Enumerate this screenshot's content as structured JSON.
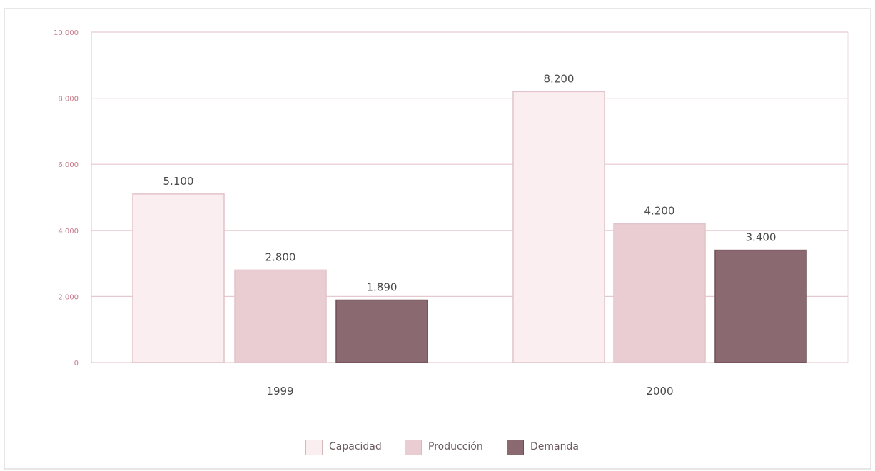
{
  "chart_data": {
    "type": "bar",
    "categories": [
      "1999",
      "2000"
    ],
    "series": [
      {
        "name": "Capacidad",
        "values": [
          5100,
          8200
        ],
        "labels": [
          "5.100",
          "8.200"
        ],
        "color": "#faeef0"
      },
      {
        "name": "Producción",
        "values": [
          2800,
          4200
        ],
        "labels": [
          "2.800",
          "4.200"
        ],
        "color": "#e9cdd2"
      },
      {
        "name": "Demanda",
        "values": [
          1890,
          3400
        ],
        "labels": [
          "1.890",
          "3.400"
        ],
        "color": "#8a6a70"
      }
    ],
    "yticks": [
      0,
      2000,
      4000,
      6000,
      8000,
      10000
    ],
    "ytick_labels": [
      "0",
      "2.000",
      "4.000",
      "6.000",
      "8.000",
      "10.000"
    ],
    "ylim": [
      0,
      10000
    ],
    "grid": true,
    "legend_position": "bottom-center",
    "colors": {
      "gridline": "#e6c9cf",
      "axis_tick_text": "#c67a8a",
      "data_label_text": "#4a4a4a",
      "category_text": "#4a4a4a",
      "bar_border": "#e2c3c9"
    }
  }
}
